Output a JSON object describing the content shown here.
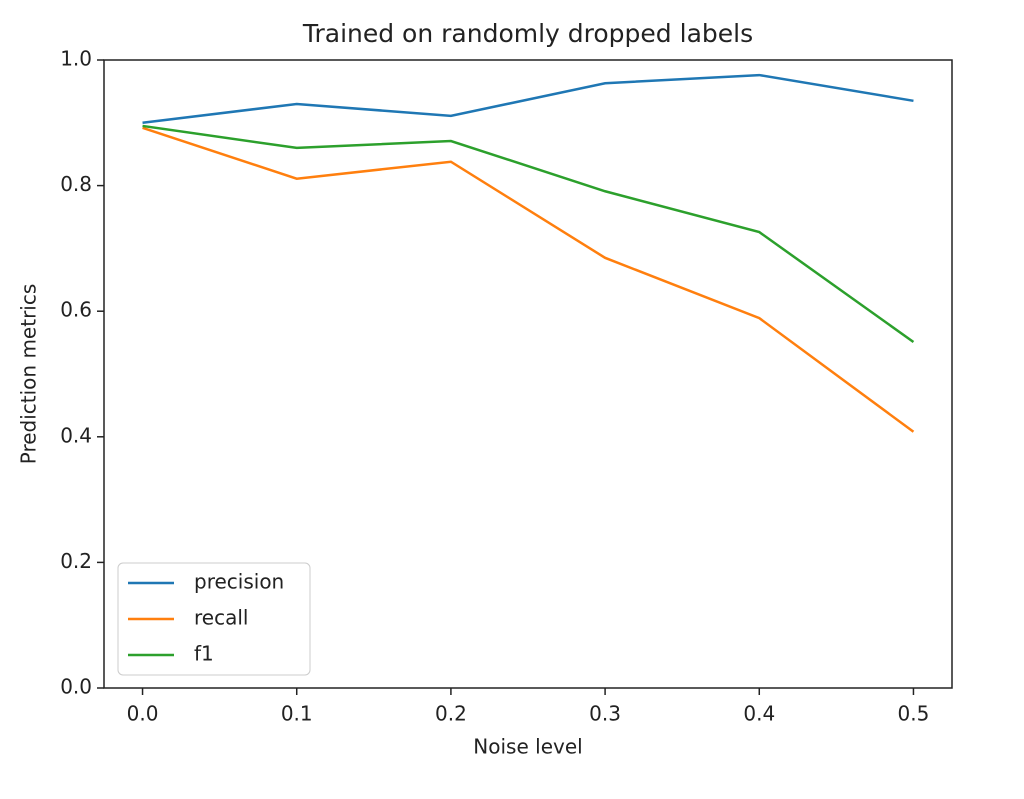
{
  "chart_data": {
    "type": "line",
    "title": "Trained on randomly dropped labels",
    "x_label": "Noise level",
    "y_label": "Prediction metrics",
    "x": [
      0.0,
      0.1,
      0.2,
      0.3,
      0.4,
      0.5
    ],
    "series": [
      {
        "name": "precision",
        "color": "#1f77b4",
        "values": [
          0.9,
          0.93,
          0.911,
          0.963,
          0.976,
          0.935
        ]
      },
      {
        "name": "recall",
        "color": "#ff7f0e",
        "values": [
          0.892,
          0.811,
          0.838,
          0.685,
          0.589,
          0.408
        ]
      },
      {
        "name": "f1",
        "color": "#2ca02c",
        "values": [
          0.895,
          0.86,
          0.871,
          0.791,
          0.726,
          0.551
        ]
      }
    ],
    "xlim": [
      -0.025,
      0.525
    ],
    "xticks": [
      {
        "value": 0,
        "label": "0.0"
      },
      0.1,
      0.2,
      0.3,
      0.4,
      0.5
    ],
    "ylim": [
      0,
      1
    ],
    "yticks": [
      {
        "value": 0,
        "label": "0.0"
      },
      0.2,
      0.4,
      0.6,
      0.8,
      {
        "value": 1,
        "label": "1.0"
      }
    ],
    "grid": false,
    "legend": "lower left"
  }
}
